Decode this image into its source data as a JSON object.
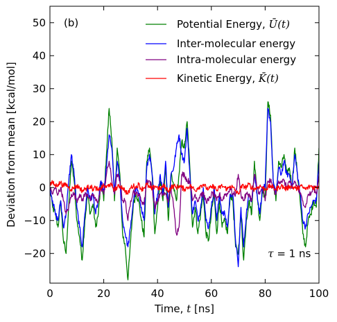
{
  "chart_data": {
    "type": "line",
    "panel_label": "(b)",
    "xlabel_text": "Time, ",
    "xlabel_symbol": "t",
    "xlabel_unit": " [ns]",
    "ylabel": "Deviation from mean [kcal/mol]",
    "xlim": [
      0,
      100
    ],
    "ylim": [
      -29,
      55
    ],
    "xticks": [
      0,
      20,
      40,
      60,
      80,
      100
    ],
    "yticks": [
      -20,
      -10,
      0,
      10,
      20,
      30,
      40,
      50
    ],
    "xtick_labels": [
      "0",
      "20",
      "40",
      "60",
      "80",
      "100"
    ],
    "ytick_labels": [
      "−20",
      "−10",
      "0",
      "10",
      "20",
      "30",
      "40",
      "50"
    ],
    "grid": false,
    "legend_position": "top-right",
    "annotation": {
      "symbol": "τ",
      "rest": " = 1 ns",
      "x": 81,
      "y": -20
    },
    "series": [
      {
        "name": "Potential Energy, Ū(t)",
        "name_main": "Potential Energy, ",
        "name_symbol": "Ū(t)",
        "color": "#008000",
        "x": [
          0,
          1,
          2,
          3,
          4,
          5,
          6,
          7,
          8,
          9,
          10,
          11,
          12,
          13,
          14,
          15,
          16,
          17,
          18,
          19,
          20,
          21,
          22,
          23,
          24,
          25,
          26,
          27,
          28,
          29,
          30,
          31,
          32,
          33,
          34,
          35,
          36,
          37,
          38,
          39,
          40,
          41,
          42,
          43,
          44,
          45,
          46,
          47,
          48,
          49,
          50,
          51,
          52,
          53,
          54,
          55,
          56,
          57,
          58,
          59,
          60,
          61,
          62,
          63,
          64,
          65,
          66,
          67,
          68,
          69,
          70,
          71,
          72,
          73,
          74,
          75,
          76,
          77,
          78,
          79,
          80,
          81,
          82,
          83,
          84,
          85,
          86,
          87,
          88,
          89,
          90,
          91,
          92,
          93,
          94,
          95,
          96,
          97,
          98,
          99,
          100
        ],
        "y": [
          0,
          -6,
          -8,
          -12,
          -4,
          -16,
          -20,
          -5,
          8,
          2,
          -10,
          -15,
          -22,
          -10,
          -2,
          -8,
          -5,
          -12,
          -8,
          2,
          -4,
          10,
          24,
          15,
          -4,
          12,
          4,
          -14,
          -18,
          -28,
          -16,
          -5,
          -2,
          -4,
          -10,
          -15,
          8,
          12,
          4,
          -14,
          -6,
          2,
          -4,
          6,
          -10,
          4,
          0,
          -4,
          4,
          14,
          12,
          20,
          6,
          -12,
          -6,
          -14,
          -8,
          -2,
          -14,
          -16,
          -8,
          -2,
          -14,
          -4,
          -12,
          -10,
          -14,
          -2,
          -4,
          -18,
          -20,
          -8,
          -22,
          -10,
          -4,
          -8,
          8,
          -2,
          -10,
          0,
          -4,
          26,
          22,
          2,
          -4,
          8,
          6,
          10,
          4,
          6,
          0,
          12,
          4,
          -4,
          -14,
          -18,
          -10,
          -8,
          -4,
          -6,
          12
        ]
      },
      {
        "name": "Inter-molecular energy",
        "color": "#0000ff",
        "x": [
          0,
          1,
          2,
          3,
          4,
          5,
          6,
          7,
          8,
          9,
          10,
          11,
          12,
          13,
          14,
          15,
          16,
          17,
          18,
          19,
          20,
          21,
          22,
          23,
          24,
          25,
          26,
          27,
          28,
          29,
          30,
          31,
          32,
          33,
          34,
          35,
          36,
          37,
          38,
          39,
          40,
          41,
          42,
          43,
          44,
          45,
          46,
          47,
          48,
          49,
          50,
          51,
          52,
          53,
          54,
          55,
          56,
          57,
          58,
          59,
          60,
          61,
          62,
          63,
          64,
          65,
          66,
          67,
          68,
          69,
          70,
          71,
          72,
          73,
          74,
          75,
          76,
          77,
          78,
          79,
          80,
          81,
          82,
          83,
          84,
          85,
          86,
          87,
          88,
          89,
          90,
          91,
          92,
          93,
          94,
          95,
          96,
          97,
          98,
          99,
          100
        ],
        "y": [
          0,
          -4,
          -8,
          -10,
          -4,
          -12,
          -8,
          2,
          10,
          4,
          -6,
          -12,
          -18,
          -8,
          0,
          -4,
          -2,
          -8,
          -4,
          2,
          -2,
          6,
          16,
          12,
          -2,
          8,
          2,
          -10,
          -14,
          -18,
          -12,
          -4,
          0,
          -2,
          -6,
          -10,
          6,
          10,
          4,
          -8,
          -2,
          4,
          -2,
          8,
          -6,
          4,
          6,
          12,
          16,
          10,
          8,
          18,
          4,
          -8,
          -4,
          -10,
          -6,
          0,
          -10,
          -12,
          -6,
          0,
          -10,
          -2,
          -8,
          -8,
          -12,
          -2,
          -2,
          -16,
          -24,
          -6,
          -18,
          -8,
          -2,
          -4,
          4,
          -2,
          -8,
          0,
          0,
          24,
          20,
          2,
          -2,
          6,
          4,
          8,
          4,
          4,
          0,
          10,
          4,
          -2,
          -10,
          -12,
          -8,
          -6,
          -4,
          -4,
          8
        ]
      },
      {
        "name": "Intra-molecular energy",
        "color": "#800080",
        "x": [
          0,
          1,
          2,
          3,
          4,
          5,
          6,
          7,
          8,
          9,
          10,
          11,
          12,
          13,
          14,
          15,
          16,
          17,
          18,
          19,
          20,
          21,
          22,
          23,
          24,
          25,
          26,
          27,
          28,
          29,
          30,
          31,
          32,
          33,
          34,
          35,
          36,
          37,
          38,
          39,
          40,
          41,
          42,
          43,
          44,
          45,
          46,
          47,
          48,
          49,
          50,
          51,
          52,
          53,
          54,
          55,
          56,
          57,
          58,
          59,
          60,
          61,
          62,
          63,
          64,
          65,
          66,
          67,
          68,
          69,
          70,
          71,
          72,
          73,
          74,
          75,
          76,
          77,
          78,
          79,
          80,
          81,
          82,
          83,
          84,
          85,
          86,
          87,
          88,
          89,
          90,
          91,
          92,
          93,
          94,
          95,
          96,
          97,
          98,
          99,
          100
        ],
        "y": [
          0,
          -2,
          0,
          -2,
          0,
          -4,
          -8,
          -6,
          -2,
          -2,
          -4,
          -2,
          -4,
          -2,
          -2,
          -4,
          -2,
          -4,
          -4,
          0,
          -2,
          4,
          8,
          2,
          -2,
          4,
          2,
          -4,
          -4,
          -10,
          -4,
          -1,
          -2,
          -2,
          -4,
          -5,
          2,
          2,
          0,
          -6,
          -4,
          -2,
          -2,
          -2,
          -4,
          0,
          -6,
          -14,
          -12,
          4,
          4,
          2,
          2,
          -4,
          -2,
          -4,
          -2,
          -2,
          -4,
          -4,
          -2,
          -2,
          -4,
          -2,
          -4,
          -2,
          -2,
          0,
          -2,
          -2,
          4,
          -2,
          -4,
          -2,
          -2,
          -4,
          4,
          0,
          -2,
          0,
          -4,
          2,
          2,
          0,
          -2,
          2,
          2,
          2,
          0,
          2,
          0,
          2,
          0,
          -2,
          -4,
          -6,
          -2,
          -2,
          0,
          -2,
          4
        ]
      },
      {
        "name": "Kinetic Energy, K̄(t)",
        "name_main": "Kinetic Energy, ",
        "name_symbol": "K̄(t)",
        "color": "#ff0000",
        "x": [
          0,
          1,
          2,
          3,
          4,
          5,
          6,
          7,
          8,
          9,
          10,
          11,
          12,
          13,
          14,
          15,
          16,
          17,
          18,
          19,
          20,
          21,
          22,
          23,
          24,
          25,
          26,
          27,
          28,
          29,
          30,
          31,
          32,
          33,
          34,
          35,
          36,
          37,
          38,
          39,
          40,
          41,
          42,
          43,
          44,
          45,
          46,
          47,
          48,
          49,
          50,
          51,
          52,
          53,
          54,
          55,
          56,
          57,
          58,
          59,
          60,
          61,
          62,
          63,
          64,
          65,
          66,
          67,
          68,
          69,
          70,
          71,
          72,
          73,
          74,
          75,
          76,
          77,
          78,
          79,
          80,
          81,
          82,
          83,
          84,
          85,
          86,
          87,
          88,
          89,
          90,
          91,
          92,
          93,
          94,
          95,
          96,
          97,
          98,
          99,
          100
        ],
        "y": [
          1,
          1.5,
          0.5,
          1,
          1.5,
          0.5,
          1,
          0,
          -0.5,
          0,
          0.5,
          0,
          -1,
          -0.5,
          0,
          0.5,
          -0.5,
          0,
          -1,
          0,
          0.5,
          0,
          1,
          0.5,
          -0.5,
          0,
          0.5,
          0,
          -1,
          -2,
          0,
          0.5,
          0,
          1,
          -0.5,
          0,
          1,
          0,
          -0.5,
          0.5,
          0,
          -0.5,
          0.5,
          0,
          -1,
          0,
          0.5,
          0,
          0.5,
          0,
          -0.5,
          0,
          0.5,
          0,
          -1,
          0,
          0.5,
          1,
          0,
          -0.5,
          0,
          0.5,
          -1,
          0,
          0.5,
          0,
          -0.5,
          0.5,
          0,
          -1,
          -2,
          0,
          0.5,
          0,
          1,
          0,
          -0.5,
          0,
          0.5,
          0,
          -0.5,
          0,
          0.5,
          0,
          -0.5,
          0,
          0.5,
          0,
          -0.5,
          0.5,
          0,
          0,
          -0.5,
          0.5,
          0,
          -0.5,
          0,
          0.5,
          0,
          0,
          0.5
        ]
      }
    ]
  }
}
